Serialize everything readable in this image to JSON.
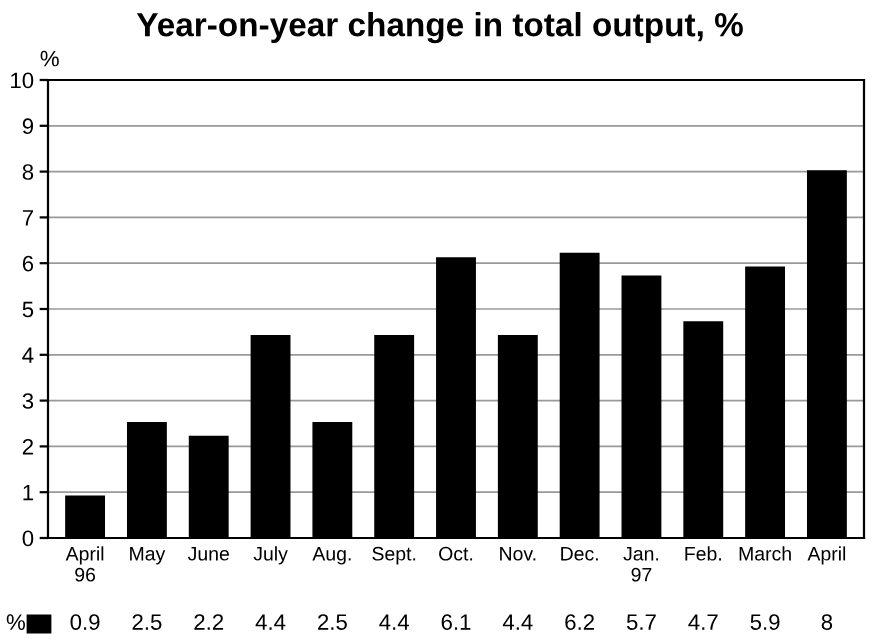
{
  "chart_data": {
    "type": "bar",
    "title": "Year-on-year change in total output, %",
    "ylabel": "%",
    "categories": [
      "April\n96",
      "May",
      "June",
      "July",
      "Aug.",
      "Sept.",
      "Oct.",
      "Nov.",
      "Dec.",
      "Jan.\n97",
      "Feb.",
      "March",
      "April"
    ],
    "series": [
      {
        "name": "%",
        "color": "#000000",
        "values": [
          0.9,
          2.5,
          2.2,
          4.4,
          2.5,
          4.4,
          6.1,
          4.4,
          6.2,
          5.7,
          4.7,
          5.9,
          8
        ]
      }
    ],
    "ylim": [
      0,
      10
    ],
    "yticks": [
      0,
      1,
      2,
      3,
      4,
      5,
      6,
      7,
      8,
      9,
      10
    ],
    "grid": "y",
    "data_labels": true
  }
}
